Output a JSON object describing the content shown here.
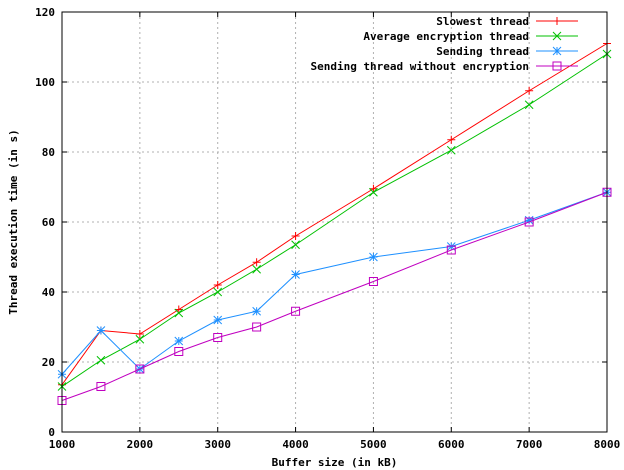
{
  "chart_data": {
    "type": "line",
    "title": "",
    "xlabel": "Buffer size (in kB)",
    "ylabel": "Thread execution time (in s)",
    "xlim": [
      1000,
      8000
    ],
    "ylim": [
      0,
      120
    ],
    "xticks": [
      1000,
      2000,
      3000,
      4000,
      5000,
      6000,
      7000,
      8000
    ],
    "yticks": [
      0,
      20,
      40,
      60,
      80,
      100,
      120
    ],
    "grid": true,
    "legend_position": "top-right",
    "series": [
      {
        "name": "Slowest thread",
        "color": "#ff0000",
        "marker": "plus",
        "x": [
          1000,
          1500,
          2000,
          2500,
          3000,
          3500,
          4000,
          5000,
          6000,
          7000,
          8000
        ],
        "y": [
          13.5,
          29,
          28,
          35,
          42,
          48.5,
          56,
          69.5,
          83.5,
          97.5,
          111
        ]
      },
      {
        "name": "Average encryption thread",
        "color": "#00c000",
        "marker": "cross",
        "x": [
          1000,
          1500,
          2000,
          2500,
          3000,
          3500,
          4000,
          5000,
          6000,
          7000,
          8000
        ],
        "y": [
          13,
          20.5,
          26.5,
          34,
          40,
          46.5,
          53.5,
          68.5,
          80.5,
          93.5,
          108
        ]
      },
      {
        "name": "Sending thread",
        "color": "#1e90ff",
        "marker": "star",
        "x": [
          1000,
          1500,
          2000,
          2500,
          3000,
          3500,
          4000,
          5000,
          6000,
          7000,
          8000
        ],
        "y": [
          16.5,
          29,
          18,
          26,
          32,
          34.5,
          45,
          50,
          53,
          60.5,
          68.5
        ]
      },
      {
        "name": "Sending thread without encryption",
        "color": "#c000c0",
        "marker": "square",
        "x": [
          1000,
          1500,
          2000,
          2500,
          3000,
          3500,
          4000,
          5000,
          6000,
          7000,
          8000
        ],
        "y": [
          9,
          13,
          18,
          23,
          27,
          30,
          34.5,
          43,
          52,
          60,
          68.5
        ]
      }
    ]
  }
}
